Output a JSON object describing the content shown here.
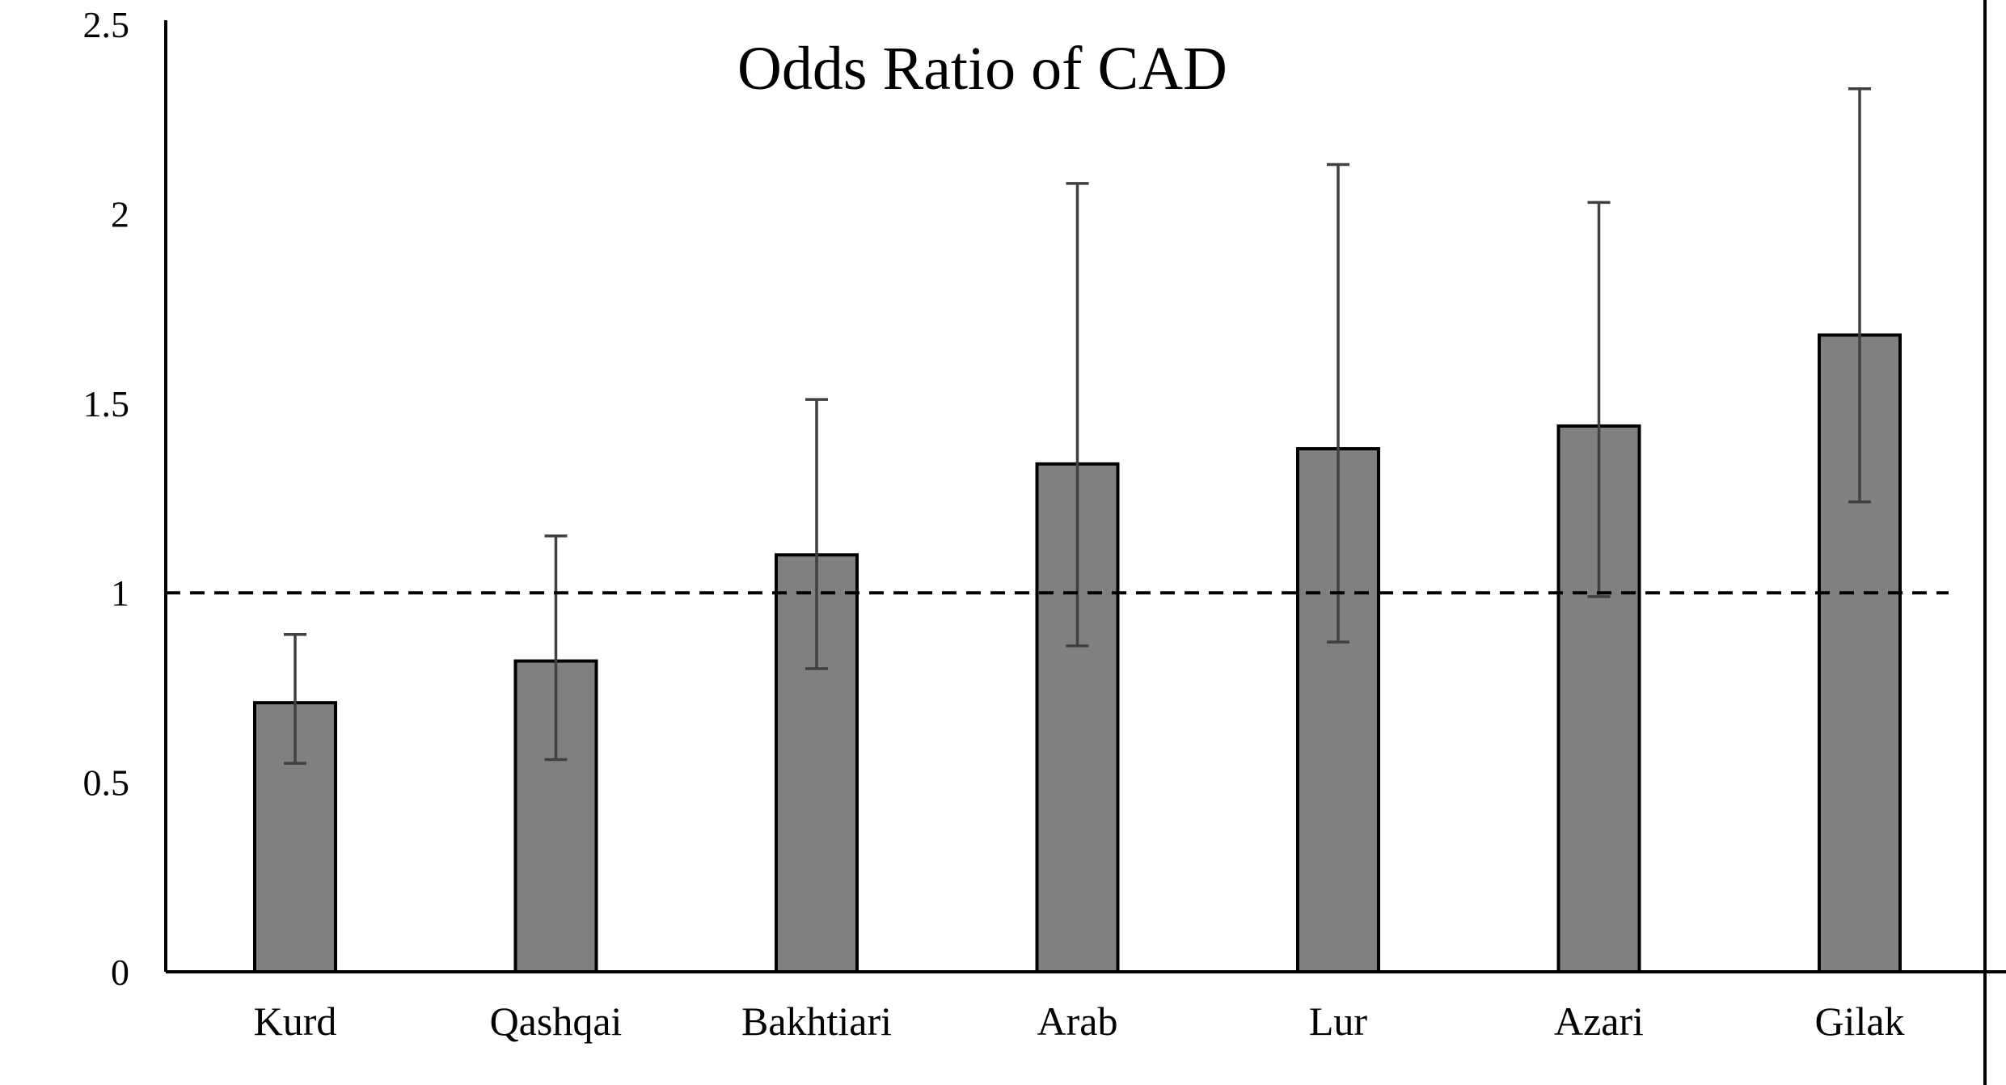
{
  "chart_data": {
    "type": "bar",
    "title": "Odds Ratio of CAD",
    "xlabel": "",
    "ylabel": "",
    "categories": [
      "Kurd",
      "Qashqai",
      "Bakhtiari",
      "Arab",
      "Lur",
      "Azari",
      "Gilak"
    ],
    "values": [
      0.71,
      0.82,
      1.1,
      1.34,
      1.38,
      1.44,
      1.68
    ],
    "error_low": [
      0.55,
      0.56,
      0.8,
      0.86,
      0.87,
      0.99,
      1.24
    ],
    "error_high": [
      0.89,
      1.15,
      1.51,
      2.08,
      2.13,
      2.03,
      2.33
    ],
    "reference_line": 1,
    "ylim": [
      0,
      2.5
    ],
    "yticks": [
      "0",
      "0.5",
      "1",
      "1.5",
      "2",
      "2.5"
    ],
    "grid": false,
    "colors": {
      "bar": "#808080",
      "bar_edge": "#000000",
      "error_bar": "#404040",
      "reference_line": "#000000"
    }
  }
}
